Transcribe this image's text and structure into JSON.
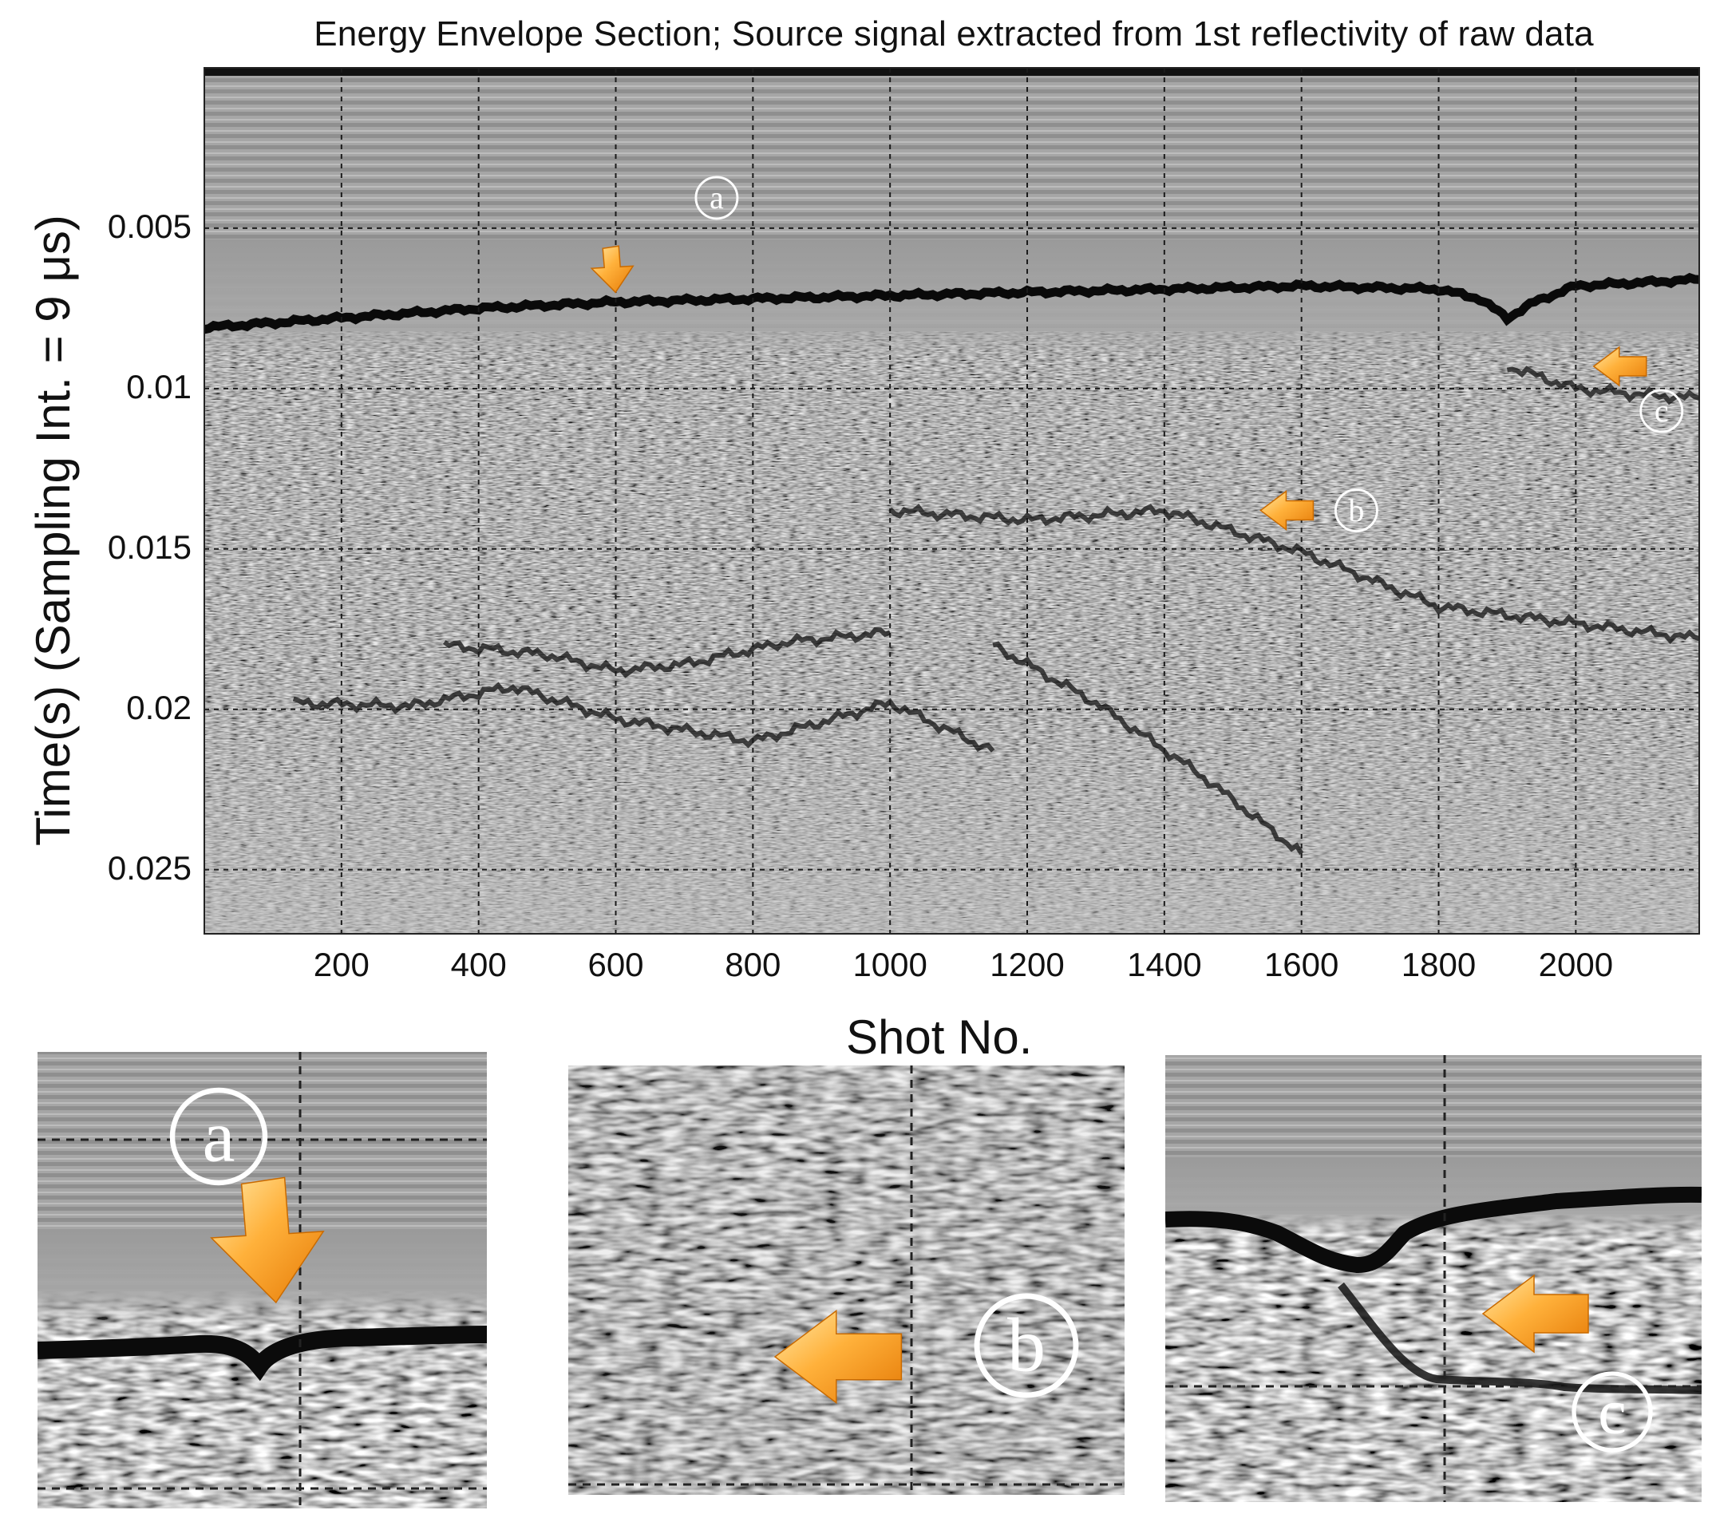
{
  "chart_data": [
    {
      "type": "heatmap",
      "title": "Energy Envelope Section; Source signal extracted from 1st reflectivity of raw data",
      "xlabel": "Shot No.",
      "ylabel": "Time(s) (Sampling Int. = 9 μs)",
      "xlim": [
        0,
        2180
      ],
      "ylim": [
        0,
        0.027
      ],
      "y_reversed": true,
      "colormap": "gray",
      "grid": true,
      "grid_style": "dashed",
      "x_ticks": [
        200,
        400,
        600,
        800,
        1000,
        1200,
        1400,
        1600,
        1800,
        2000
      ],
      "x_tick_labels": [
        "200",
        "400",
        "600",
        "800",
        "1000",
        "1200",
        "1400",
        "1600",
        "1800",
        "2000"
      ],
      "y_ticks": [
        0.005,
        0.01,
        0.015,
        0.02,
        0.025
      ],
      "y_tick_labels": [
        "0.005",
        "0.01",
        "0.015",
        "0.02",
        "0.025"
      ],
      "seafloor_reflector": {
        "x": [
          0,
          200,
          400,
          600,
          800,
          1000,
          1200,
          1400,
          1600,
          1800,
          1860,
          1900,
          1940,
          2000,
          2180
        ],
        "y": [
          0.0081,
          0.0078,
          0.0075,
          0.0073,
          0.0072,
          0.0071,
          0.007,
          0.0069,
          0.0068,
          0.0069,
          0.0072,
          0.0078,
          0.0073,
          0.0068,
          0.0066
        ]
      },
      "sub_reflectors": [
        {
          "x": [
            130,
            300,
            450,
            600,
            800,
            1000,
            1150
          ],
          "y": [
            0.0198,
            0.0199,
            0.0193,
            0.0203,
            0.021,
            0.0198,
            0.0213
          ]
        },
        {
          "x": [
            350,
            500,
            600,
            700,
            850,
            1000
          ],
          "y": [
            0.018,
            0.0183,
            0.0188,
            0.0186,
            0.0179,
            0.0176
          ]
        },
        {
          "x": [
            1000,
            1200,
            1400,
            1600,
            1800,
            2180
          ],
          "y": [
            0.0138,
            0.0141,
            0.0138,
            0.0151,
            0.0168,
            0.0178
          ]
        },
        {
          "x": [
            1900,
            2000,
            2100,
            2180
          ],
          "y": [
            0.0093,
            0.01,
            0.0102,
            0.0103
          ]
        },
        {
          "x": [
            1150,
            1300,
            1450,
            1600
          ],
          "y": [
            0.018,
            0.0198,
            0.022,
            0.0245
          ]
        }
      ],
      "annotations": [
        {
          "label": "a",
          "x": 590,
          "y": 0.0048,
          "arrow": "down"
        },
        {
          "label": "b",
          "x": 1680,
          "y": 0.0138,
          "arrow": "left"
        },
        {
          "label": "c",
          "x": 2125,
          "y": 0.0107,
          "arrow": "left"
        }
      ]
    },
    {
      "type": "heatmap",
      "inset": "a",
      "label": "a",
      "arrow": "down"
    },
    {
      "type": "heatmap",
      "inset": "b",
      "label": "b",
      "arrow": "left"
    },
    {
      "type": "heatmap",
      "inset": "c",
      "label": "c",
      "arrow": "left"
    }
  ]
}
